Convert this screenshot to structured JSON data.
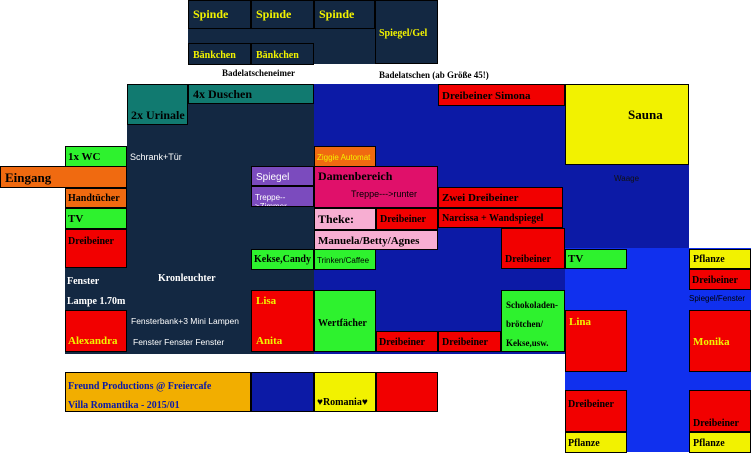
{
  "colors": {
    "dark_navy": "#132842",
    "blue": "#0c1aa6",
    "bright_blue": "#1030ee",
    "red": "#f20000",
    "yellow": "#f2f200",
    "green": "#2ef22e",
    "orange": "#f06a10",
    "amber": "#f2ae00",
    "purple": "#7b4bbe",
    "pink": "#f7aed2",
    "magenta": "#e0106a",
    "teal": "#117a70",
    "white": "#ffffff"
  },
  "labels": {
    "spinde_1": "Spinde",
    "spinde_2": "Spinde",
    "spinde_3": "Spinde",
    "baenkchen_1": "Bänkchen",
    "baenkchen_2": "Bänkchen",
    "spiegel_gel": "Spiegel/Gel",
    "badelatscheneimer": "Badelatscheneimer",
    "badelatschen": "Badelatschen (ab Größe 45!)",
    "duschen": "4x Duschen",
    "urinale": "2x Urinale",
    "dreibeiner_simona": "Dreibeiner  Simona",
    "sauna": "Sauna",
    "wc": "1x WC",
    "schrank_tuer": "Schrank+Tür",
    "eingang": "Eingang",
    "ziggie_automat": "Ziggie Automat",
    "spiegel": "Spiegel",
    "treppe_zimmer": "Treppe-->Zimmer",
    "damenbereich": "Damenbereich",
    "treppe_runter": "Treppe--->runter",
    "waage": "Waage",
    "handtuecher": "Handtücher",
    "zwei_dreibeiner": "Zwei Dreibeiner",
    "tv_left": "TV",
    "theke": "Theke:",
    "dreibeiner_theke": "Dreibeiner",
    "narcissa": "Narcissa + Wandspiegel",
    "dreibeiner_left": "Dreibeiner",
    "manuela": "Manuela/Betty/Agnes",
    "kekse_candy": "Kekse,Candy",
    "trinken_caffee": "Trinken/Caffee",
    "dreibeiner_mid": "Dreibeiner",
    "tv_right": "TV",
    "pflanze_top": "Pflanze",
    "kronleuchter": "Kronleuchter",
    "fenster": "Fenster",
    "dreibeiner_r1": "Dreibeiner",
    "lampe": "Lampe 1.70m",
    "lisa": "Lisa",
    "schokoladen": "Schokoladen-",
    "broetchen": "brötchen/",
    "kekse_usw": "Kekse,usw.",
    "spiegel_r": "Spiegel/Fenster",
    "fensterbank": "Fensterbank+3 Mini Lampen",
    "wertfaecher": "Wertfächer",
    "lina": "Lina",
    "monika": "Monika",
    "alexandra": "Alexandra",
    "fenster3": "Fenster Fenster Fenster",
    "anita": "Anita",
    "dreibeiner_b1": "Dreibeiner",
    "dreibeiner_b2": "Dreibeiner",
    "freund": "Freund Productions @ Freiercafe",
    "villa": "Villa Romantika - 2015/01",
    "romania": "♥Romania♥",
    "dreibeiner_r2": "Dreibeiner",
    "dreibeiner_r3": "Dreibeiner",
    "pflanze_bl": "Pflanze",
    "pflanze_br": "Pflanze"
  }
}
